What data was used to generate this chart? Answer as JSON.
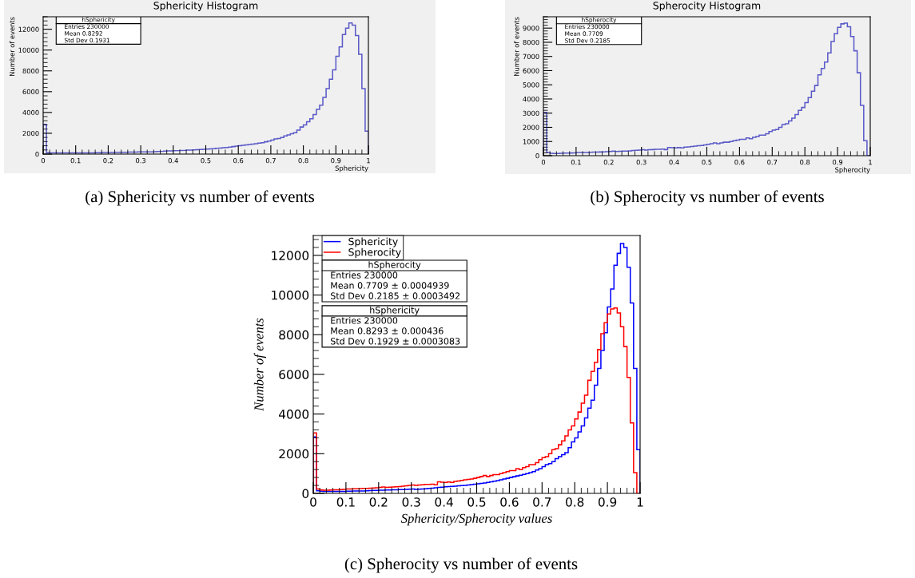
{
  "chart_data": [
    {
      "type": "histogram",
      "title": "Sphericity Histogram",
      "xlabel": "Sphericity",
      "ylabel": "Number of events",
      "bins": [
        0,
        0.01,
        0.02,
        0.03,
        0.04,
        0.05,
        0.06,
        0.07,
        0.08,
        0.09,
        0.1,
        0.11,
        0.12,
        0.13,
        0.14,
        0.15,
        0.16,
        0.17,
        0.18,
        0.19,
        0.2,
        0.21,
        0.22,
        0.23,
        0.24,
        0.25,
        0.26,
        0.27,
        0.28,
        0.29,
        0.3,
        0.31,
        0.32,
        0.33,
        0.34,
        0.35,
        0.36,
        0.37,
        0.38,
        0.39,
        0.4,
        0.41,
        0.42,
        0.43,
        0.44,
        0.45,
        0.46,
        0.47,
        0.48,
        0.49,
        0.5,
        0.51,
        0.52,
        0.53,
        0.54,
        0.55,
        0.56,
        0.57,
        0.58,
        0.59,
        0.6,
        0.61,
        0.62,
        0.63,
        0.64,
        0.65,
        0.66,
        0.67,
        0.68,
        0.69,
        0.7,
        0.71,
        0.72,
        0.73,
        0.74,
        0.75,
        0.76,
        0.77,
        0.78,
        0.79,
        0.8,
        0.81,
        0.82,
        0.83,
        0.84,
        0.85,
        0.86,
        0.87,
        0.88,
        0.89,
        0.9,
        0.91,
        0.92,
        0.93,
        0.94,
        0.95,
        0.96,
        0.97,
        0.98,
        0.99,
        1
      ],
      "series": [
        {
          "color": "#5a5ac8",
          "values": [
            2850,
            130,
            110,
            100,
            100,
            100,
            100,
            100,
            100,
            100,
            110,
            110,
            120,
            120,
            120,
            120,
            130,
            140,
            150,
            150,
            160,
            160,
            170,
            170,
            180,
            180,
            190,
            190,
            200,
            210,
            220,
            200,
            210,
            220,
            230,
            250,
            260,
            280,
            300,
            310,
            330,
            340,
            350,
            360,
            380,
            390,
            400,
            420,
            440,
            460,
            480,
            500,
            520,
            550,
            580,
            610,
            640,
            680,
            720,
            760,
            800,
            840,
            880,
            920,
            960,
            1000,
            1050,
            1100,
            1180,
            1250,
            1350,
            1450,
            1500,
            1600,
            1750,
            1850,
            1950,
            2050,
            2300,
            2600,
            2800,
            3100,
            3400,
            3800,
            4300,
            4700,
            5450,
            6300,
            7200,
            8100,
            9400,
            10300,
            11500,
            12100,
            12600,
            12400,
            11400,
            9600,
            6300,
            2200
          ]
        }
      ],
      "xlim": [
        0,
        1
      ],
      "xticks": [
        0,
        0.1,
        0.2,
        0.3,
        0.4,
        0.5,
        0.6,
        0.7,
        0.8,
        0.9,
        1
      ],
      "ylim": [
        0,
        13200
      ],
      "yticks": [
        0,
        2000,
        4000,
        6000,
        8000,
        10000,
        12000
      ],
      "grid": false,
      "legend": false,
      "annotations": [
        "hSphericity",
        "Entries 230000",
        "Mean 0.8292",
        "Std Dev 0.1931",
        "(a) Sphericity vs number of events"
      ]
    },
    {
      "type": "histogram",
      "title": "Spherocity Histogram",
      "xlabel": "Spherocity",
      "ylabel": "Number of events",
      "bins": [
        0,
        0.01,
        0.02,
        0.03,
        0.04,
        0.05,
        0.06,
        0.07,
        0.08,
        0.09,
        0.1,
        0.11,
        0.12,
        0.13,
        0.14,
        0.15,
        0.16,
        0.17,
        0.18,
        0.19,
        0.2,
        0.21,
        0.22,
        0.23,
        0.24,
        0.25,
        0.26,
        0.27,
        0.28,
        0.29,
        0.3,
        0.31,
        0.32,
        0.33,
        0.34,
        0.35,
        0.36,
        0.37,
        0.38,
        0.39,
        0.4,
        0.41,
        0.42,
        0.43,
        0.44,
        0.45,
        0.46,
        0.47,
        0.48,
        0.49,
        0.5,
        0.51,
        0.52,
        0.53,
        0.54,
        0.55,
        0.56,
        0.57,
        0.58,
        0.59,
        0.6,
        0.61,
        0.62,
        0.63,
        0.64,
        0.65,
        0.66,
        0.67,
        0.68,
        0.69,
        0.7,
        0.71,
        0.72,
        0.73,
        0.74,
        0.75,
        0.76,
        0.77,
        0.78,
        0.79,
        0.8,
        0.81,
        0.82,
        0.83,
        0.84,
        0.85,
        0.86,
        0.87,
        0.88,
        0.89,
        0.9,
        0.91,
        0.92,
        0.93,
        0.94,
        0.95,
        0.96,
        0.97,
        0.98,
        0.99,
        1
      ],
      "series": [
        {
          "color": "#5a5ac8",
          "values": [
            3050,
            220,
            170,
            160,
            160,
            170,
            180,
            180,
            190,
            200,
            220,
            220,
            230,
            230,
            240,
            250,
            250,
            260,
            270,
            280,
            300,
            320,
            300,
            310,
            320,
            330,
            340,
            360,
            380,
            400,
            420,
            400,
            420,
            430,
            450,
            450,
            460,
            430,
            580,
            560,
            550,
            570,
            550,
            600,
            620,
            650,
            680,
            700,
            720,
            760,
            800,
            850,
            900,
            850,
            900,
            950,
            950,
            1000,
            1050,
            1100,
            1150,
            1150,
            1250,
            1200,
            1300,
            1350,
            1450,
            1450,
            1550,
            1700,
            1800,
            1850,
            2000,
            2200,
            2250,
            2450,
            2650,
            2900,
            3200,
            3400,
            3750,
            4100,
            4550,
            4950,
            5700,
            6150,
            6600,
            7250,
            8050,
            8600,
            9050,
            9300,
            9350,
            9100,
            8400,
            7400,
            5850,
            3550,
            1050,
            0
          ]
        }
      ],
      "xlim": [
        0,
        1
      ],
      "xticks": [
        0,
        0.1,
        0.2,
        0.3,
        0.4,
        0.5,
        0.6,
        0.7,
        0.8,
        0.9,
        1
      ],
      "ylim": [
        0,
        9800
      ],
      "yticks": [
        0,
        1000,
        2000,
        3000,
        4000,
        5000,
        6000,
        7000,
        8000,
        9000
      ],
      "grid": false,
      "legend": false,
      "annotations": [
        "hSpherocity",
        "Entries 230000",
        "Mean 0.7709",
        "Std Dev 0.2185",
        "(b) Spherocity vs number of events"
      ]
    },
    {
      "type": "histogram",
      "xlabel": "Sphericity/Spherocity values",
      "ylabel": "Number of events",
      "bins": [
        0,
        0.01,
        0.02,
        0.03,
        0.04,
        0.05,
        0.06,
        0.07,
        0.08,
        0.09,
        0.1,
        0.11,
        0.12,
        0.13,
        0.14,
        0.15,
        0.16,
        0.17,
        0.18,
        0.19,
        0.2,
        0.21,
        0.22,
        0.23,
        0.24,
        0.25,
        0.26,
        0.27,
        0.28,
        0.29,
        0.3,
        0.31,
        0.32,
        0.33,
        0.34,
        0.35,
        0.36,
        0.37,
        0.38,
        0.39,
        0.4,
        0.41,
        0.42,
        0.43,
        0.44,
        0.45,
        0.46,
        0.47,
        0.48,
        0.49,
        0.5,
        0.51,
        0.52,
        0.53,
        0.54,
        0.55,
        0.56,
        0.57,
        0.58,
        0.59,
        0.6,
        0.61,
        0.62,
        0.63,
        0.64,
        0.65,
        0.66,
        0.67,
        0.68,
        0.69,
        0.7,
        0.71,
        0.72,
        0.73,
        0.74,
        0.75,
        0.76,
        0.77,
        0.78,
        0.79,
        0.8,
        0.81,
        0.82,
        0.83,
        0.84,
        0.85,
        0.86,
        0.87,
        0.88,
        0.89,
        0.9,
        0.91,
        0.92,
        0.93,
        0.94,
        0.95,
        0.96,
        0.97,
        0.98,
        0.99,
        1
      ],
      "series": [
        {
          "name": "Sphericity",
          "color": "#0000ff",
          "values": [
            2850,
            130,
            110,
            100,
            100,
            100,
            100,
            100,
            100,
            100,
            110,
            110,
            120,
            120,
            120,
            120,
            130,
            140,
            150,
            150,
            160,
            160,
            170,
            170,
            180,
            180,
            190,
            190,
            200,
            210,
            220,
            200,
            210,
            220,
            230,
            250,
            260,
            280,
            300,
            310,
            330,
            340,
            350,
            360,
            380,
            390,
            400,
            420,
            440,
            460,
            480,
            500,
            520,
            550,
            580,
            610,
            640,
            680,
            720,
            760,
            800,
            840,
            880,
            920,
            960,
            1000,
            1050,
            1100,
            1180,
            1250,
            1350,
            1450,
            1500,
            1600,
            1750,
            1850,
            1950,
            2050,
            2300,
            2600,
            2800,
            3100,
            3400,
            3800,
            4300,
            4700,
            5450,
            6300,
            7200,
            8100,
            9400,
            10300,
            11500,
            12100,
            12600,
            12400,
            11400,
            9600,
            6300,
            2200
          ]
        },
        {
          "name": "Spherocity",
          "color": "#ff0000",
          "values": [
            3050,
            220,
            170,
            160,
            160,
            170,
            180,
            180,
            190,
            200,
            220,
            220,
            230,
            230,
            240,
            250,
            250,
            260,
            270,
            280,
            300,
            320,
            300,
            310,
            320,
            330,
            340,
            360,
            380,
            400,
            420,
            400,
            420,
            430,
            450,
            450,
            460,
            430,
            580,
            560,
            550,
            570,
            550,
            600,
            620,
            650,
            680,
            700,
            720,
            760,
            800,
            850,
            900,
            850,
            900,
            950,
            950,
            1000,
            1050,
            1100,
            1150,
            1150,
            1250,
            1200,
            1300,
            1350,
            1450,
            1450,
            1550,
            1700,
            1800,
            1850,
            2000,
            2200,
            2250,
            2450,
            2650,
            2900,
            3200,
            3400,
            3750,
            4100,
            4550,
            4950,
            5700,
            6150,
            6600,
            7250,
            8050,
            8600,
            9050,
            9300,
            9350,
            9100,
            8400,
            7400,
            5850,
            3550,
            1050,
            0
          ]
        }
      ],
      "xlim": [
        0,
        1
      ],
      "xticks": [
        0,
        0.1,
        0.2,
        0.3,
        0.4,
        0.5,
        0.6,
        0.7,
        0.8,
        0.9,
        1
      ],
      "ylim": [
        0,
        13000
      ],
      "yticks": [
        0,
        2000,
        4000,
        6000,
        8000,
        10000,
        12000
      ],
      "grid": false,
      "legend": "top left",
      "annotations": [
        "hSpherocity",
        "Entries 230000",
        "Mean 0.7709 ± 0.0004939",
        "Std Dev 0.2185 ± 0.0003492",
        "hSphericity",
        "Entries 230000",
        "Mean 0.8293 ± 0.000436",
        "Std Dev 0.1929 ± 0.0003083",
        "(c) Spherocity vs number of events"
      ]
    }
  ]
}
